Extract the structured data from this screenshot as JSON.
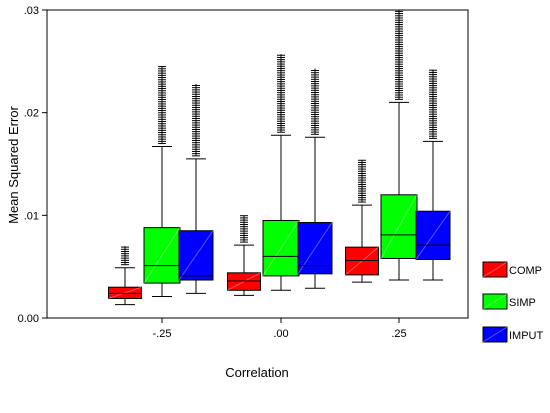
{
  "chart_data": {
    "type": "boxplot",
    "xlabel": "Correlation",
    "ylabel": "Mean Squared Error",
    "categories": [
      "-.25",
      ".00",
      ".25"
    ],
    "ylim": [
      0,
      0.03
    ],
    "yticks": [
      {
        "value": 0.0,
        "label": "0.00"
      },
      {
        "value": 0.01,
        "label": ".01"
      },
      {
        "value": 0.02,
        "label": ".02"
      },
      {
        "value": 0.03,
        "label": ".03"
      }
    ],
    "grid": false,
    "legend": {
      "placement": "right"
    },
    "series": [
      {
        "name": "COMP",
        "color": "#ff0000",
        "boxes": [
          {
            "category": "-.25",
            "whisker_low": 0.0013,
            "q1": 0.0019,
            "median": 0.0024,
            "q3": 0.003,
            "whisker_high": 0.0049,
            "outlier_max": 0.007
          },
          {
            "category": ".00",
            "whisker_low": 0.0022,
            "q1": 0.0027,
            "median": 0.0036,
            "q3": 0.0044,
            "whisker_high": 0.0071,
            "outlier_max": 0.01
          },
          {
            "category": ".25",
            "whisker_low": 0.0035,
            "q1": 0.0042,
            "median": 0.0056,
            "q3": 0.0069,
            "whisker_high": 0.011,
            "outlier_max": 0.0154
          }
        ]
      },
      {
        "name": "SIMP",
        "color": "#00ff00",
        "boxes": [
          {
            "category": "-.25",
            "whisker_low": 0.0021,
            "q1": 0.0034,
            "median": 0.0051,
            "q3": 0.0088,
            "whisker_high": 0.0167,
            "outlier_max": 0.0245
          },
          {
            "category": ".00",
            "whisker_low": 0.0027,
            "q1": 0.0041,
            "median": 0.006,
            "q3": 0.0095,
            "whisker_high": 0.0178,
            "outlier_max": 0.0257
          },
          {
            "category": ".25",
            "whisker_low": 0.0037,
            "q1": 0.0058,
            "median": 0.0081,
            "q3": 0.012,
            "whisker_high": 0.021,
            "outlier_max": 0.03
          }
        ]
      },
      {
        "name": "IMPUT",
        "color": "#0000ff",
        "boxes": [
          {
            "category": "-.25",
            "whisker_low": 0.0024,
            "q1": 0.0037,
            "median": 0.0041,
            "q3": 0.0085,
            "whisker_high": 0.0155,
            "outlier_max": 0.0228
          },
          {
            "category": ".00",
            "whisker_low": 0.0029,
            "q1": 0.0043,
            "median": 0.0051,
            "q3": 0.0093,
            "whisker_high": 0.0176,
            "outlier_max": 0.0243
          },
          {
            "category": ".25",
            "whisker_low": 0.0037,
            "q1": 0.0057,
            "median": 0.0071,
            "q3": 0.0104,
            "whisker_high": 0.0172,
            "outlier_max": 0.0242
          }
        ]
      }
    ]
  }
}
